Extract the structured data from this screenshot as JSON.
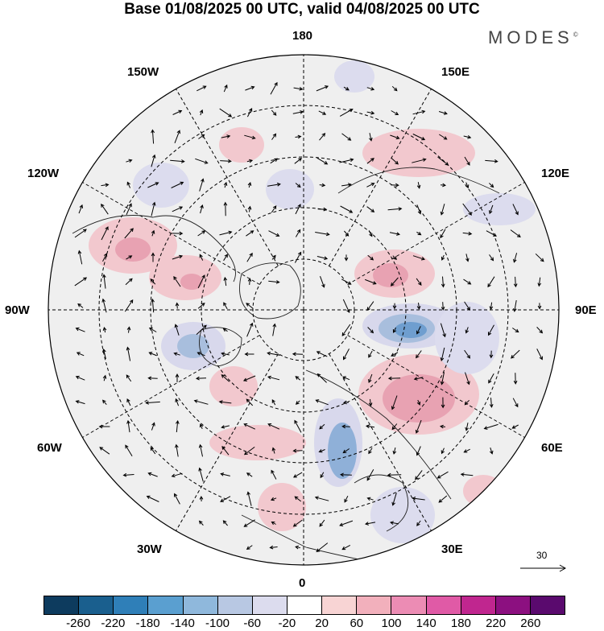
{
  "title": "Base 01/08/2025 00 UTC, valid 04/08/2025 00 UTC",
  "logo": "MODES",
  "logo_mark": "©",
  "longitude_labels": {
    "top": "180",
    "bottom": "0",
    "left": "90W",
    "right": "90E",
    "upper_left_1": "150W",
    "upper_left_2": "120W",
    "upper_right_1": "150E",
    "upper_right_2": "120E",
    "lower_left_1": "60W",
    "lower_left_2": "30W",
    "lower_right_1": "60E",
    "lower_right_2": "30E"
  },
  "reference_vector": "30",
  "colorbar": {
    "colors": [
      "#0d3b5e",
      "#1a5f8e",
      "#2f7fb8",
      "#5a9fd0",
      "#8fb8dc",
      "#b8c8e3",
      "#dcdcee",
      "#ffffff",
      "#f8d4d4",
      "#f2b0bc",
      "#ec8cb4",
      "#e05aa6",
      "#c0268f",
      "#8c1080",
      "#5a0a6e"
    ],
    "tick_labels": [
      "-260",
      "-220",
      "-180",
      "-140",
      "-100",
      "-60",
      "-20",
      "20",
      "60",
      "100",
      "140",
      "180",
      "220",
      "260"
    ]
  }
}
